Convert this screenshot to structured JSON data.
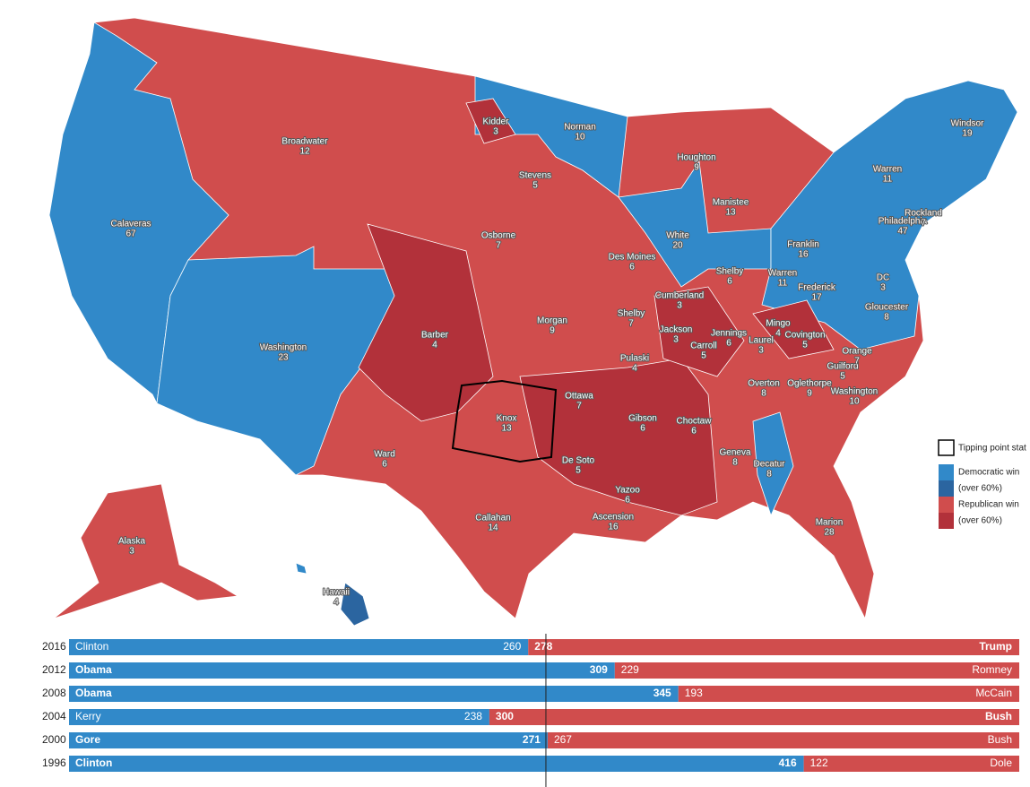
{
  "map": {
    "regions": [
      {
        "name": "Calaveras",
        "votes": 67
      },
      {
        "name": "Broadwater",
        "votes": 12
      },
      {
        "name": "Washington",
        "votes": 23
      },
      {
        "name": "Alaska",
        "votes": 3
      },
      {
        "name": "Hawaii",
        "votes": 4
      },
      {
        "name": "Kidder",
        "votes": 3
      },
      {
        "name": "Norman",
        "votes": 10
      },
      {
        "name": "Stevens",
        "votes": 5
      },
      {
        "name": "Osborne",
        "votes": 7
      },
      {
        "name": "Barber",
        "votes": 4
      },
      {
        "name": "Ward",
        "votes": 6
      },
      {
        "name": "Morgan",
        "votes": 9
      },
      {
        "name": "Knox",
        "votes": 13
      },
      {
        "name": "Callahan",
        "votes": 14
      },
      {
        "name": "Des Moines",
        "votes": 6
      },
      {
        "name": "Houghton",
        "votes": 9
      },
      {
        "name": "Manistee",
        "votes": 13
      },
      {
        "name": "White",
        "votes": 20
      },
      {
        "name": "Shelby",
        "votes": 7
      },
      {
        "name": "Pulaski",
        "votes": 4
      },
      {
        "name": "Ottawa",
        "votes": 7
      },
      {
        "name": "Gibson",
        "votes": 6
      },
      {
        "name": "De Soto",
        "votes": 5
      },
      {
        "name": "Yazoo",
        "votes": 6
      },
      {
        "name": "Ascension",
        "votes": 16
      },
      {
        "name": "Choctaw",
        "votes": 6
      },
      {
        "name": "Geneva",
        "votes": 8
      },
      {
        "name": "Decatur",
        "votes": 8
      },
      {
        "name": "Marion",
        "votes": 28
      },
      {
        "name": "Cumberland",
        "votes": 3
      },
      {
        "name": "Jackson",
        "votes": 3
      },
      {
        "name": "Carroll",
        "votes": 5
      },
      {
        "name": "Jennings",
        "votes": 6
      },
      {
        "name": "Shelby",
        "votes": 6
      },
      {
        "name": "Warren",
        "votes": 11
      },
      {
        "name": "Franklin",
        "votes": 16
      },
      {
        "name": "Frederick",
        "votes": 17
      },
      {
        "name": "Mingo",
        "votes": 4
      },
      {
        "name": "Laurel",
        "votes": 3
      },
      {
        "name": "Covington",
        "votes": 5
      },
      {
        "name": "Overton",
        "votes": 8
      },
      {
        "name": "Oglethorpe",
        "votes": 9
      },
      {
        "name": "Guilford",
        "votes": 5
      },
      {
        "name": "Orange",
        "votes": 7
      },
      {
        "name": "Washington",
        "votes": 10
      },
      {
        "name": "Gloucester",
        "votes": 8
      },
      {
        "name": "DC",
        "votes": 3
      },
      {
        "name": "Philadelphia",
        "votes": 47
      },
      {
        "name": "Rockland",
        "votes": 7
      },
      {
        "name": "Warren",
        "votes": 11
      },
      {
        "name": "Windsor",
        "votes": 19
      }
    ],
    "legend": {
      "tipping": "Tipping point stat",
      "items": [
        {
          "label": "Democratic win",
          "color": "#3189c9"
        },
        {
          "label": "(over 60%)",
          "color": "#2b65a0"
        },
        {
          "label": "Republican win",
          "color": "#d04d4d"
        },
        {
          "label": "(over 60%)",
          "color": "#b2313a"
        }
      ]
    }
  },
  "chart_data": {
    "type": "bar",
    "xlim": [
      0,
      538
    ],
    "majority": 270,
    "categories": [
      "2016",
      "2012",
      "2008",
      "2004",
      "2000",
      "1996"
    ],
    "series": [
      {
        "color": "#3189c9",
        "names": [
          "Clinton",
          "Obama",
          "Obama",
          "Kerry",
          "Gore",
          "Clinton"
        ],
        "values": [
          260,
          309,
          345,
          238,
          271,
          416
        ]
      },
      {
        "color": "#d04d4d",
        "names": [
          "Trump",
          "Romney",
          "McCain",
          "Bush",
          "Bush",
          "Dole"
        ],
        "values": [
          278,
          229,
          193,
          300,
          267,
          122
        ]
      }
    ]
  }
}
